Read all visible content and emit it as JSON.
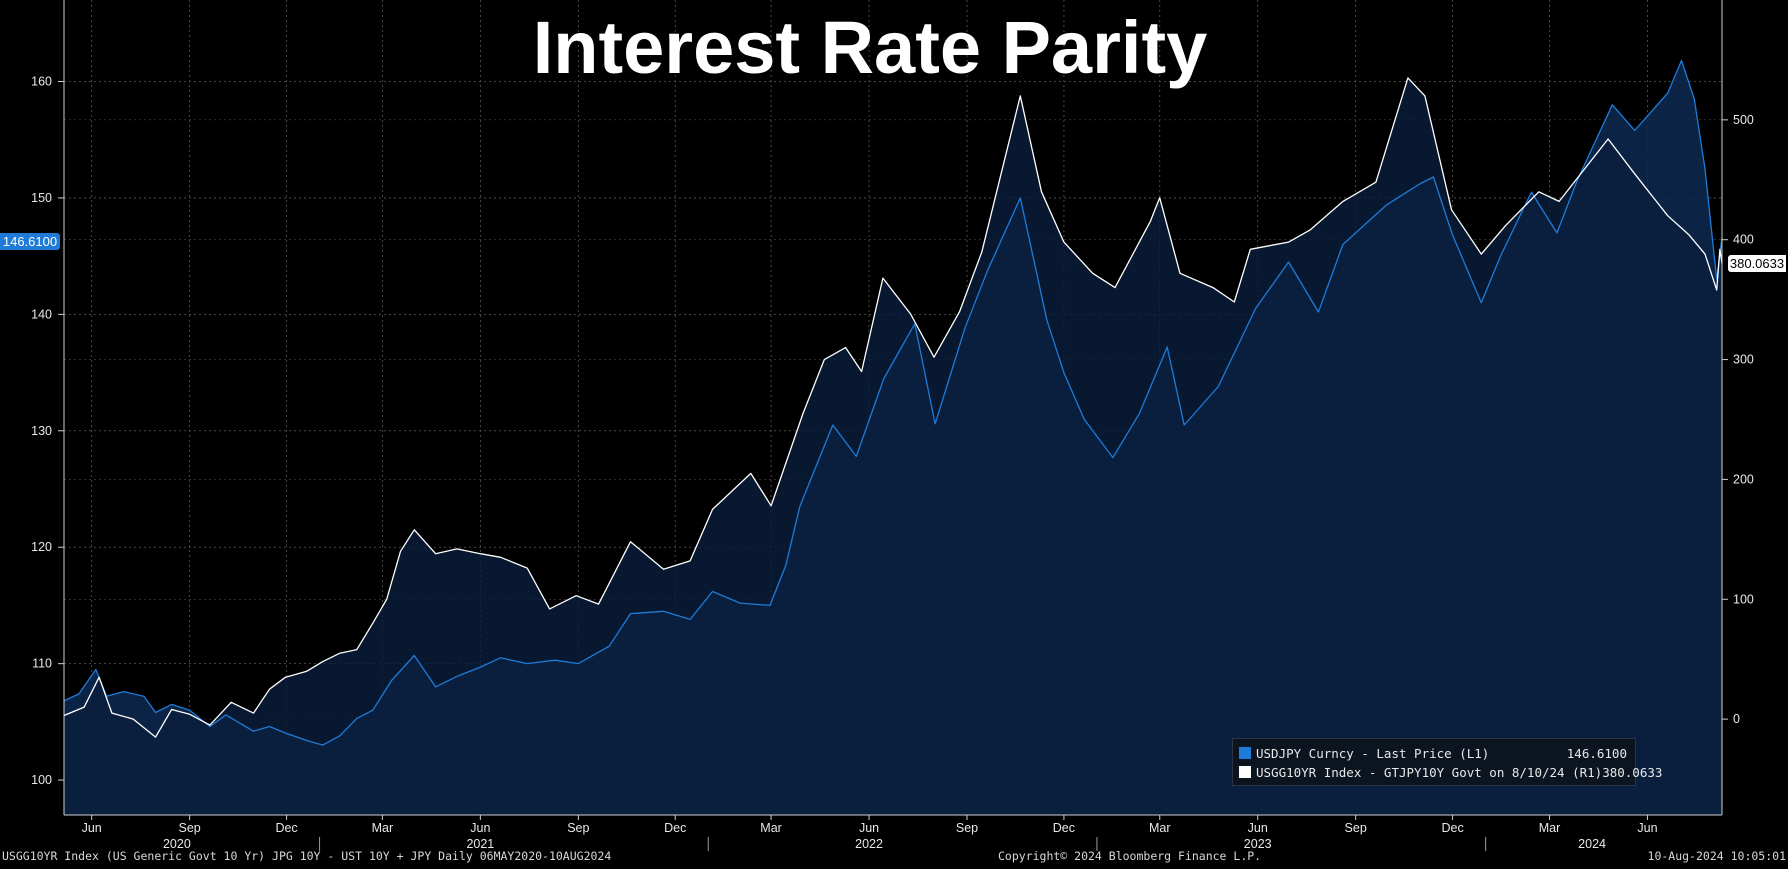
{
  "header": {
    "title": "Interest Rate Parity"
  },
  "footer": {
    "left": "USGG10YR Index (US Generic Govt 10 Yr) JPG 10Y - UST 10Y + JPY  Daily 06MAY2020-10AUG2024",
    "center": "Copyright© 2024 Bloomberg Finance L.P.",
    "right": "10-Aug-2024 10:05:01"
  },
  "legend": {
    "items": [
      {
        "label": "USDJPY Curncy - Last Price (L1)",
        "value": "146.6100",
        "color": "#1e7bd8"
      },
      {
        "label": "USGG10YR Index - GTJPY10Y Govt on 8/10/24 (R1)",
        "value": "380.0633",
        "color": "#ffffff"
      }
    ]
  },
  "last_value_tags": {
    "left": "146.6100",
    "right": "380.0633"
  },
  "chart_data": {
    "type": "line",
    "title": "Interest Rate Parity",
    "left_axis": {
      "ticks": [
        "100",
        "110",
        "120",
        "130",
        "140",
        "150",
        "160"
      ],
      "ylim": [
        97,
        167
      ]
    },
    "right_axis": {
      "ticks": [
        "0",
        "100",
        "200",
        "300",
        "400",
        "500"
      ],
      "ylim": [
        -80,
        600
      ]
    },
    "x_months": [
      "Jun",
      "Sep",
      "Dec",
      "Mar",
      "Jun",
      "Sep",
      "Dec",
      "Mar",
      "Jun",
      "Sep",
      "Dec",
      "Mar",
      "Jun",
      "Sep",
      "Dec",
      "Mar",
      "Jun"
    ],
    "x_years": [
      "2020",
      "2021",
      "2022",
      "2023",
      "2024"
    ],
    "xlim": [
      "2020-05-06",
      "2024-08-10"
    ],
    "grid": true,
    "series": [
      {
        "name": "USDJPY Curncy - Last Price (L1)",
        "axis": "left",
        "color": "#1e7bd8",
        "filled": true,
        "points": [
          [
            "2020-05-06",
            106.8
          ],
          [
            "2020-05-20",
            107.4
          ],
          [
            "2020-06-05",
            109.5
          ],
          [
            "2020-06-15",
            107.2
          ],
          [
            "2020-07-01",
            107.6
          ],
          [
            "2020-07-20",
            107.2
          ],
          [
            "2020-07-31",
            105.8
          ],
          [
            "2020-08-15",
            106.5
          ],
          [
            "2020-09-01",
            106.0
          ],
          [
            "2020-09-20",
            104.6
          ],
          [
            "2020-10-05",
            105.6
          ],
          [
            "2020-10-31",
            104.2
          ],
          [
            "2020-11-15",
            104.6
          ],
          [
            "2020-12-01",
            104.0
          ],
          [
            "2020-12-20",
            103.4
          ],
          [
            "2021-01-04",
            103.0
          ],
          [
            "2021-01-20",
            103.8
          ],
          [
            "2021-02-05",
            105.3
          ],
          [
            "2021-02-20",
            106.0
          ],
          [
            "2021-03-10",
            108.6
          ],
          [
            "2021-03-31",
            110.7
          ],
          [
            "2021-04-20",
            108.0
          ],
          [
            "2021-05-10",
            108.9
          ],
          [
            "2021-06-01",
            109.7
          ],
          [
            "2021-06-20",
            110.5
          ],
          [
            "2021-07-15",
            110.0
          ],
          [
            "2021-08-10",
            110.3
          ],
          [
            "2021-09-01",
            110.0
          ],
          [
            "2021-09-30",
            111.5
          ],
          [
            "2021-10-20",
            114.3
          ],
          [
            "2021-11-20",
            114.5
          ],
          [
            "2021-12-15",
            113.8
          ],
          [
            "2022-01-05",
            116.2
          ],
          [
            "2022-01-31",
            115.2
          ],
          [
            "2022-02-28",
            115.0
          ],
          [
            "2022-03-15",
            118.5
          ],
          [
            "2022-03-28",
            123.5
          ],
          [
            "2022-04-28",
            130.5
          ],
          [
            "2022-05-20",
            127.8
          ],
          [
            "2022-06-15",
            134.5
          ],
          [
            "2022-07-14",
            139.2
          ],
          [
            "2022-08-02",
            130.6
          ],
          [
            "2022-08-30",
            138.8
          ],
          [
            "2022-09-20",
            143.7
          ],
          [
            "2022-10-21",
            150.0
          ],
          [
            "2022-11-15",
            139.5
          ],
          [
            "2022-12-01",
            135.0
          ],
          [
            "2022-12-20",
            131.0
          ],
          [
            "2023-01-16",
            127.7
          ],
          [
            "2023-02-10",
            131.5
          ],
          [
            "2023-03-08",
            137.2
          ],
          [
            "2023-03-24",
            130.5
          ],
          [
            "2023-04-25",
            133.8
          ],
          [
            "2023-05-30",
            140.5
          ],
          [
            "2023-06-30",
            144.5
          ],
          [
            "2023-07-28",
            140.2
          ],
          [
            "2023-08-20",
            146.0
          ],
          [
            "2023-09-30",
            149.4
          ],
          [
            "2023-10-31",
            151.2
          ],
          [
            "2023-11-13",
            151.8
          ],
          [
            "2023-12-01",
            146.8
          ],
          [
            "2023-12-28",
            141.0
          ],
          [
            "2024-01-15",
            145.0
          ],
          [
            "2024-02-13",
            150.5
          ],
          [
            "2024-03-08",
            147.0
          ],
          [
            "2024-03-27",
            151.5
          ],
          [
            "2024-04-29",
            158.0
          ],
          [
            "2024-05-20",
            155.8
          ],
          [
            "2024-06-20",
            159.0
          ],
          [
            "2024-07-03",
            161.8
          ],
          [
            "2024-07-15",
            158.5
          ],
          [
            "2024-07-25",
            152.5
          ],
          [
            "2024-08-05",
            143.0
          ],
          [
            "2024-08-10",
            146.61
          ]
        ]
      },
      {
        "name": "USGG10YR Index - GTJPY10Y Govt on 8/10/24 (R1)",
        "axis": "right",
        "color": "#ffffff",
        "filled": false,
        "points": [
          [
            "2020-05-06",
            3
          ],
          [
            "2020-05-25",
            10
          ],
          [
            "2020-06-08",
            35
          ],
          [
            "2020-06-20",
            5
          ],
          [
            "2020-07-10",
            0
          ],
          [
            "2020-07-31",
            -15
          ],
          [
            "2020-08-15",
            8
          ],
          [
            "2020-09-01",
            4
          ],
          [
            "2020-09-20",
            -5
          ],
          [
            "2020-10-10",
            14
          ],
          [
            "2020-10-31",
            5
          ],
          [
            "2020-11-15",
            25
          ],
          [
            "2020-11-30",
            35
          ],
          [
            "2020-12-20",
            40
          ],
          [
            "2021-01-04",
            48
          ],
          [
            "2021-01-20",
            55
          ],
          [
            "2021-02-05",
            58
          ],
          [
            "2021-02-20",
            80
          ],
          [
            "2021-03-05",
            100
          ],
          [
            "2021-03-18",
            140
          ],
          [
            "2021-03-31",
            158
          ],
          [
            "2021-04-20",
            138
          ],
          [
            "2021-05-10",
            142
          ],
          [
            "2021-06-01",
            138
          ],
          [
            "2021-06-20",
            135
          ],
          [
            "2021-07-15",
            126
          ],
          [
            "2021-08-05",
            92
          ],
          [
            "2021-08-30",
            103
          ],
          [
            "2021-09-20",
            96
          ],
          [
            "2021-10-20",
            148
          ],
          [
            "2021-11-20",
            125
          ],
          [
            "2021-12-15",
            132
          ],
          [
            "2022-01-05",
            175
          ],
          [
            "2022-02-10",
            205
          ],
          [
            "2022-03-01",
            178
          ],
          [
            "2022-03-31",
            255
          ],
          [
            "2022-04-20",
            300
          ],
          [
            "2022-05-10",
            310
          ],
          [
            "2022-05-25",
            290
          ],
          [
            "2022-06-14",
            368
          ],
          [
            "2022-07-10",
            338
          ],
          [
            "2022-08-01",
            302
          ],
          [
            "2022-08-25",
            340
          ],
          [
            "2022-09-15",
            390
          ],
          [
            "2022-10-21",
            520
          ],
          [
            "2022-11-10",
            440
          ],
          [
            "2022-12-01",
            398
          ],
          [
            "2022-12-28",
            372
          ],
          [
            "2023-01-18",
            360
          ],
          [
            "2023-02-20",
            415
          ],
          [
            "2023-03-01",
            435
          ],
          [
            "2023-03-20",
            372
          ],
          [
            "2023-04-20",
            360
          ],
          [
            "2023-05-10",
            348
          ],
          [
            "2023-05-25",
            392
          ],
          [
            "2023-06-30",
            398
          ],
          [
            "2023-07-20",
            408
          ],
          [
            "2023-08-20",
            432
          ],
          [
            "2023-09-20",
            448
          ],
          [
            "2023-10-20",
            535
          ],
          [
            "2023-11-05",
            520
          ],
          [
            "2023-11-30",
            425
          ],
          [
            "2023-12-28",
            388
          ],
          [
            "2024-01-20",
            412
          ],
          [
            "2024-02-20",
            440
          ],
          [
            "2024-03-10",
            432
          ],
          [
            "2024-04-25",
            484
          ],
          [
            "2024-05-20",
            455
          ],
          [
            "2024-06-20",
            420
          ],
          [
            "2024-07-10",
            404
          ],
          [
            "2024-07-25",
            388
          ],
          [
            "2024-08-05",
            358
          ],
          [
            "2024-08-08",
            392
          ],
          [
            "2024-08-10",
            380.06
          ]
        ]
      }
    ]
  }
}
